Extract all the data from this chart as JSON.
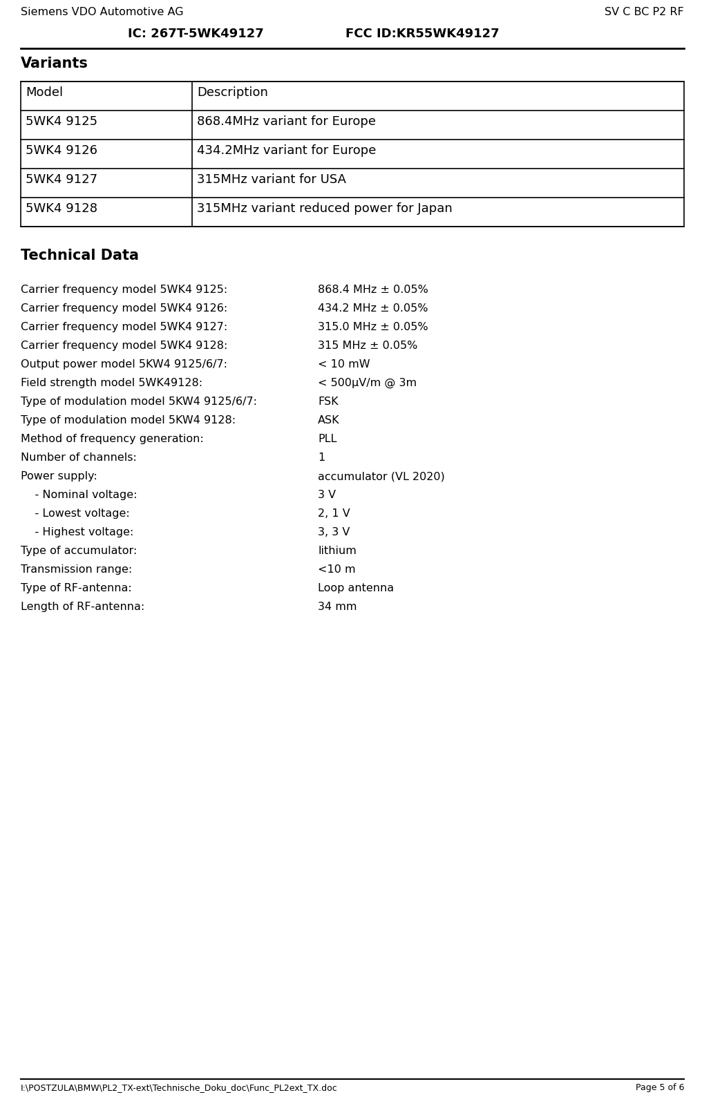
{
  "bg_color": "#ffffff",
  "header_left": "Siemens VDO Automotive AG",
  "header_right": "SV C BC P2 RF",
  "subheader_left": "IC: 267T-5WK49127",
  "subheader_right": "FCC ID:KR55WK49127",
  "variants_title": "Variants",
  "table_headers": [
    "Model",
    "Description"
  ],
  "table_rows": [
    [
      "5WK4 9125",
      "868.4MHz variant for Europe"
    ],
    [
      "5WK4 9126",
      "434.2MHz variant for Europe"
    ],
    [
      "5WK4 9127",
      "315MHz variant for USA"
    ],
    [
      "5WK4 9128",
      "315MHz variant reduced power for Japan"
    ]
  ],
  "tech_title": "Technical Data",
  "tech_data": [
    [
      "Carrier frequency model 5WK4 9125:",
      "868.4 MHz ± 0.05%"
    ],
    [
      "Carrier frequency model 5WK4 9126:",
      "434.2 MHz ± 0.05%"
    ],
    [
      "Carrier frequency model 5WK4 9127:",
      "315.0 MHz ± 0.05%"
    ],
    [
      "Carrier frequency model 5WK4 9128:",
      "315 MHz ± 0.05%"
    ],
    [
      "Output power model 5KW4 9125/6/7:",
      "< 10 mW"
    ],
    [
      "Field strength model 5WK49128:",
      "< 500μV/m @ 3m"
    ],
    [
      "Type of modulation model 5KW4 9125/6/7:",
      "FSK"
    ],
    [
      "Type of modulation model 5KW4 9128:",
      "ASK"
    ],
    [
      "Method of frequency generation:",
      "PLL"
    ],
    [
      "Number of channels:",
      "1"
    ],
    [
      "Power supply:",
      "accumulator (VL 2020)"
    ],
    [
      "    - Nominal voltage:",
      "3 V"
    ],
    [
      "    - Lowest voltage:",
      "2, 1 V"
    ],
    [
      "    - Highest voltage:",
      "3, 3 V"
    ],
    [
      "Type of accumulator:",
      "lithium"
    ],
    [
      "Transmission range:",
      "<10 m"
    ],
    [
      "Type of RF-antenna:",
      "Loop antenna"
    ],
    [
      "Length of RF-antenna:",
      "34 mm"
    ]
  ],
  "footer_left": "I:\\POSTZULA\\BMW\\PL2_TX-ext\\Technische_Doku_doc\\Func_PL2ext_TX.doc",
  "footer_right": "Page 5 of 6",
  "font_family": "Liberation Sans Narrow",
  "font_family_fallback": "Arial Narrow"
}
